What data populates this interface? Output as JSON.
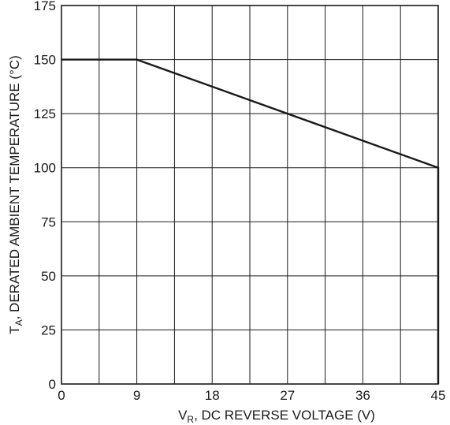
{
  "chart_data": {
    "type": "line",
    "xlabel": {
      "main": "V",
      "sub": "R",
      "rest": ", DC REVERSE VOLTAGE (V)"
    },
    "ylabel": {
      "main": "T",
      "sub": "A",
      "rest": ", DERATED AMBIENT TEMPERATURE (°C)"
    },
    "xlim": [
      0,
      45
    ],
    "ylim": [
      0,
      175
    ],
    "xticks": [
      0,
      9,
      18,
      27,
      36,
      45
    ],
    "yticks": [
      0,
      25,
      50,
      75,
      100,
      125,
      150,
      175
    ],
    "xgrid": [
      0,
      4.5,
      9,
      13.5,
      18,
      22.5,
      27,
      31.5,
      36,
      40.5,
      45
    ],
    "ygrid": [
      0,
      25,
      50,
      75,
      100,
      125,
      150,
      175
    ],
    "grid": true,
    "series": [
      {
        "x": [
          0,
          9,
          45,
          45
        ],
        "y": [
          150,
          150,
          100,
          0
        ]
      }
    ]
  }
}
